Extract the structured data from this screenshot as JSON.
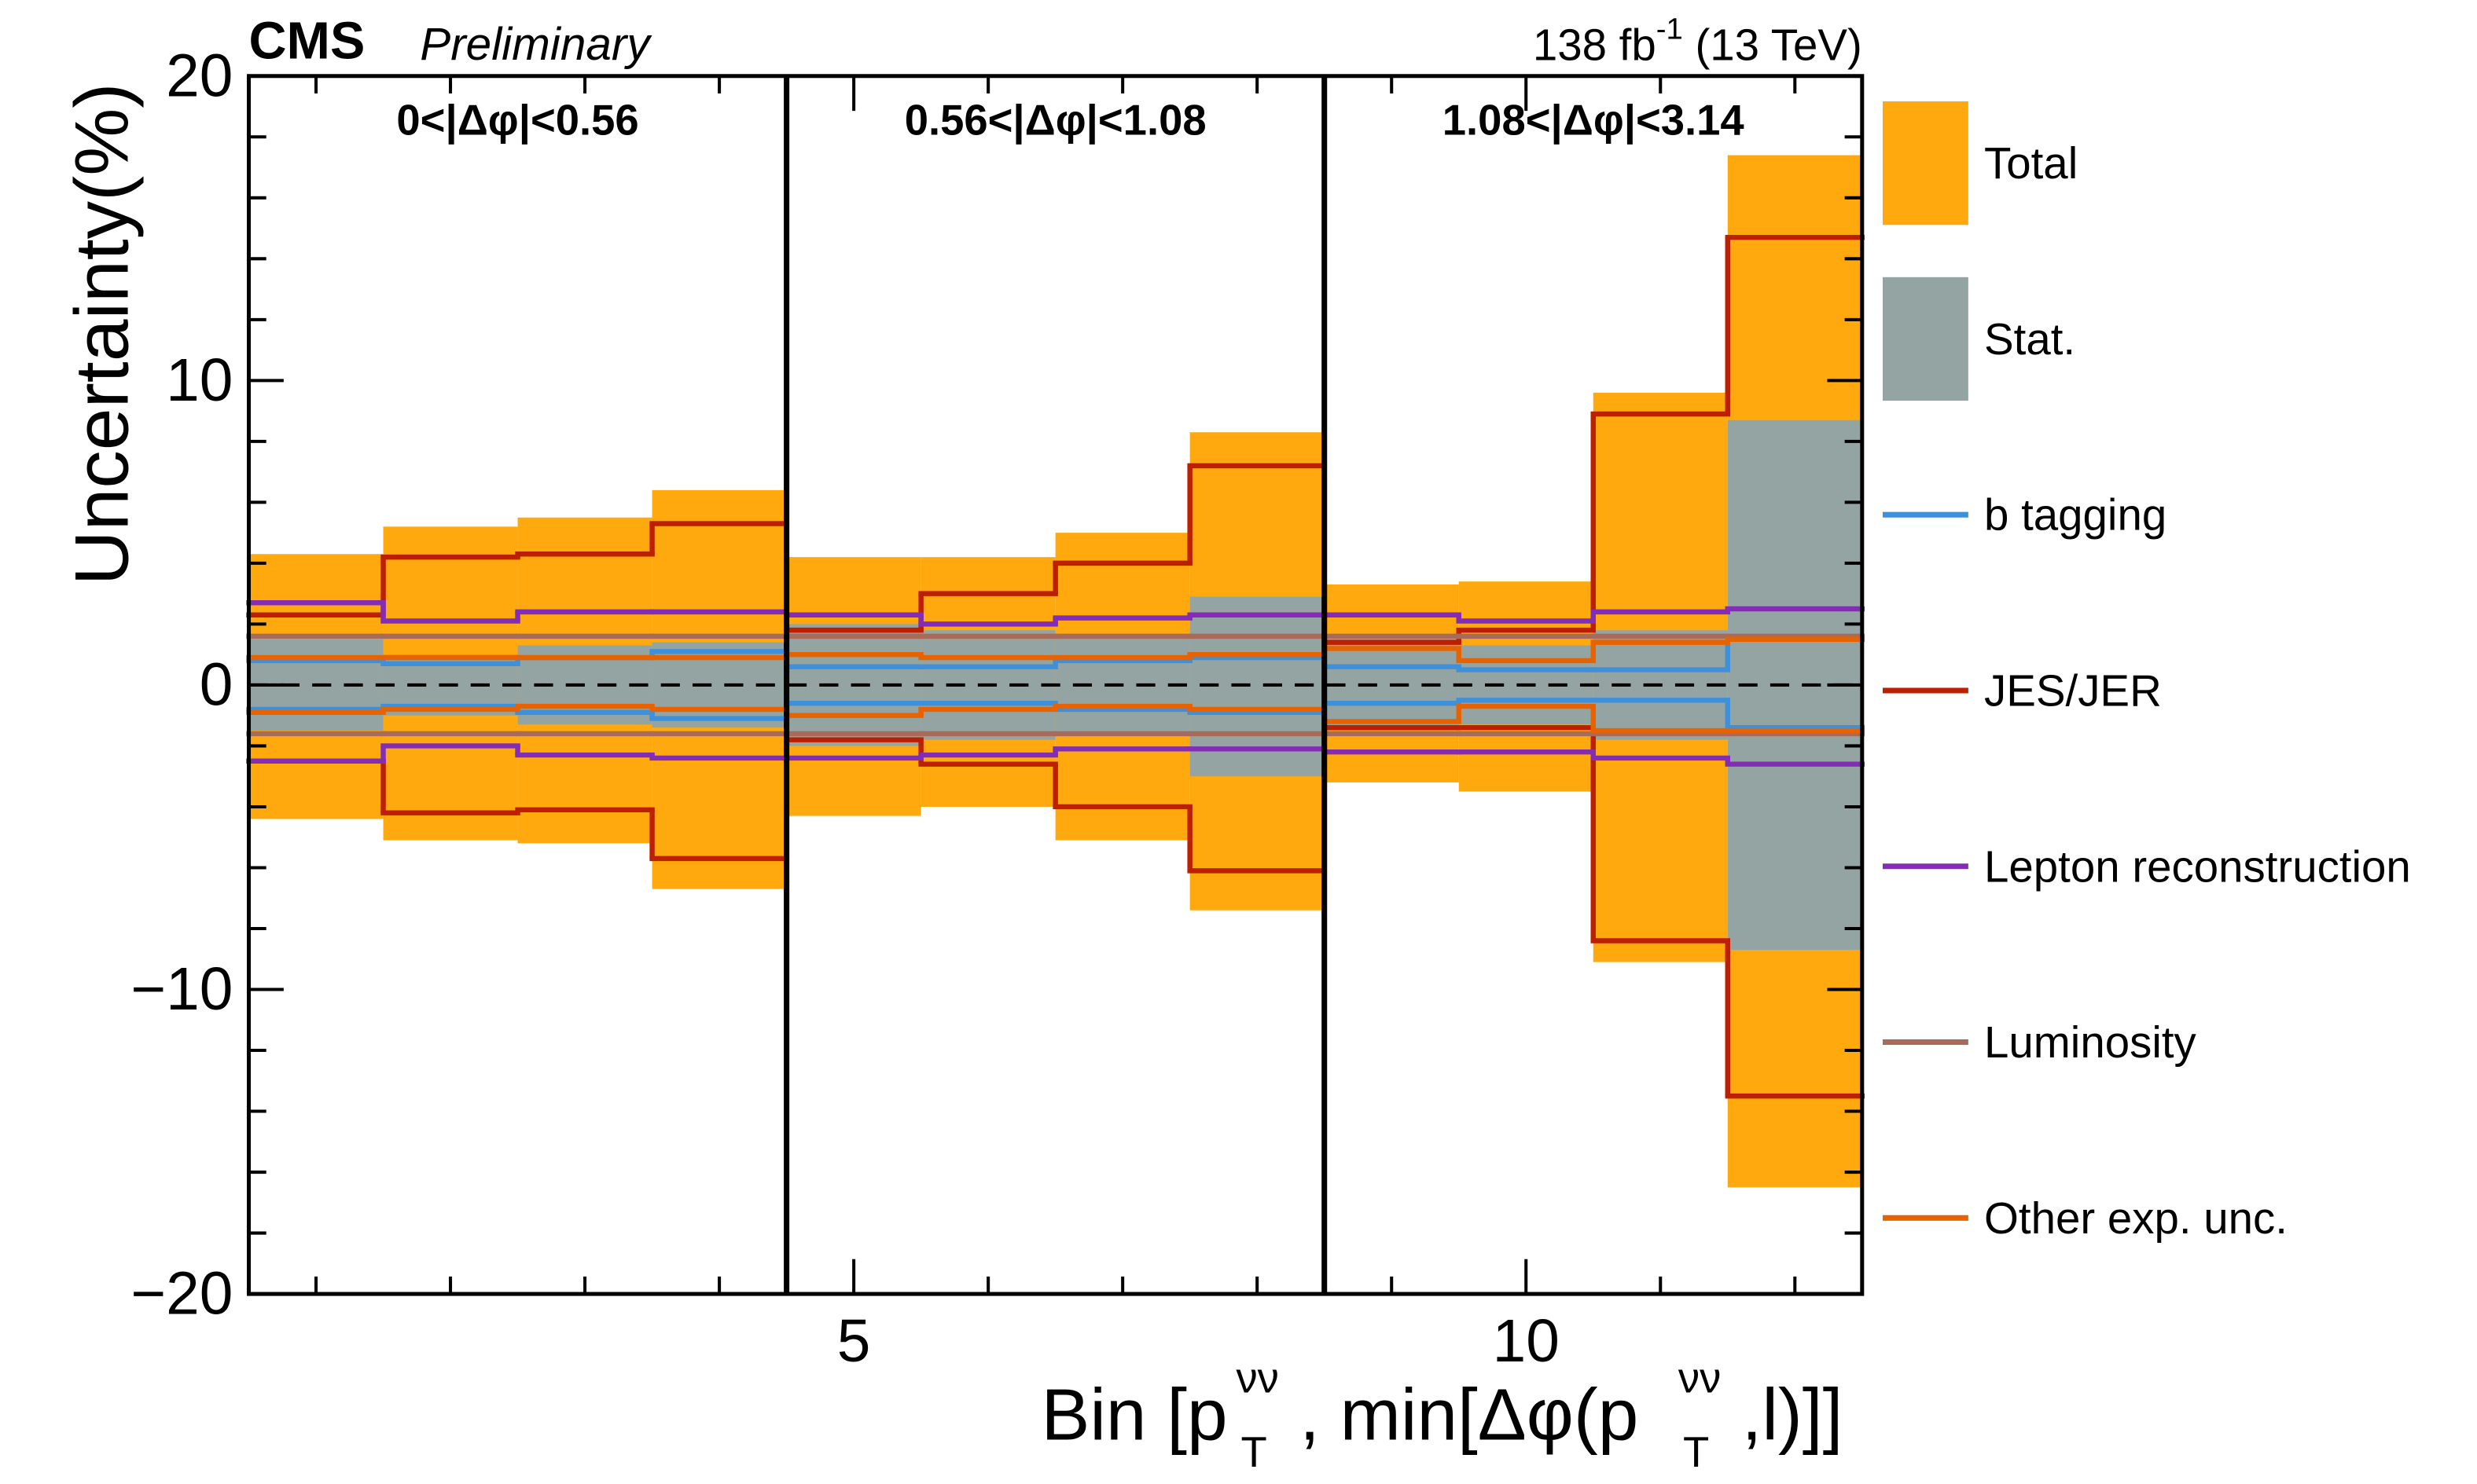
{
  "chart_data": {
    "type": "uncertainty-band",
    "experiment": "CMS",
    "status": "Preliminary",
    "lumi_text": {
      "main": "138 fb",
      "sup": "-1",
      "tail": " (13 TeV)"
    },
    "y_label": "Uncertainty(%)",
    "x_label_parts": [
      "Bin [p",
      "T",
      "νν",
      ", min[Δφ(p",
      "T",
      "νν",
      ",l)]]"
    ],
    "xlim": [
      0.5,
      12.5
    ],
    "xticks": [
      5,
      10
    ],
    "xminorticks": [
      1,
      2,
      3,
      4,
      6,
      7,
      8,
      9,
      11,
      12
    ],
    "ylim": [
      -20,
      20
    ],
    "yticks": [
      {
        "value": -20,
        "label": "−20"
      },
      {
        "value": -10,
        "label": "−10"
      },
      0,
      10,
      20
    ],
    "yminorticks": [
      -18,
      -16,
      -14,
      -12,
      -8,
      -6,
      -4,
      -2,
      2,
      4,
      6,
      8,
      12,
      14,
      16,
      18
    ],
    "dividers": [
      4.5,
      8.5
    ],
    "region_labels": [
      "0<|Δφ|<0.56",
      "0.56<|Δφ|<1.08",
      "1.08<|Δφ|<3.14"
    ],
    "x": [
      1,
      2,
      3,
      4,
      5,
      6,
      7,
      8,
      9,
      10,
      11,
      12
    ],
    "series": [
      {
        "name": "Total",
        "style": "band",
        "color": "#ffa90e",
        "values": [
          4.3,
          5.2,
          5.5,
          6.4,
          4.2,
          4.2,
          5.0,
          8.3,
          3.3,
          3.4,
          9.6,
          17.4
        ],
        "values_low": [
          -4.4,
          -5.1,
          -5.2,
          -6.7,
          -4.3,
          -4.0,
          -5.1,
          -7.4,
          -3.2,
          -3.5,
          -9.1,
          -16.5
        ]
      },
      {
        "name": "Stat.",
        "style": "band",
        "color": "#94a4a2",
        "values": [
          1.5,
          1.0,
          1.3,
          1.4,
          2.0,
          1.8,
          1.6,
          2.9,
          1.5,
          1.3,
          1.8,
          8.7
        ],
        "values_low": [
          -1.5,
          -1.0,
          -1.3,
          -1.4,
          -2.0,
          -1.8,
          -1.6,
          -3.0,
          -1.5,
          -1.3,
          -1.8,
          -8.7
        ]
      },
      {
        "name": "b tagging",
        "style": "line",
        "color": "#3f90da",
        "values": [
          0.8,
          0.7,
          0.9,
          1.1,
          0.6,
          0.6,
          0.8,
          0.9,
          0.6,
          0.5,
          0.5,
          1.5
        ],
        "values_low": [
          -0.8,
          -0.7,
          -0.9,
          -1.1,
          -0.6,
          -0.6,
          -0.8,
          -0.9,
          -0.6,
          -0.5,
          -0.5,
          -1.4
        ]
      },
      {
        "name": "JES/JER",
        "style": "line",
        "color": "#bd1f01",
        "values": [
          2.3,
          4.2,
          4.3,
          5.3,
          1.8,
          3.0,
          4.0,
          7.2,
          1.4,
          1.8,
          8.9,
          14.7
        ],
        "values_low": [
          -2.5,
          -4.2,
          -4.1,
          -5.7,
          -1.8,
          -2.6,
          -4.0,
          -6.1,
          -1.4,
          -1.4,
          -8.4,
          -13.5
        ]
      },
      {
        "name": "Lepton reconstruction",
        "style": "line",
        "color": "#832db6",
        "values": [
          2.7,
          2.1,
          2.4,
          2.4,
          2.3,
          2.0,
          2.2,
          2.3,
          2.3,
          2.1,
          2.4,
          2.5
        ],
        "values_low": [
          -2.5,
          -2.0,
          -2.3,
          -2.4,
          -2.4,
          -2.3,
          -2.1,
          -2.1,
          -2.2,
          -2.2,
          -2.4,
          -2.6
        ]
      },
      {
        "name": "Luminosity",
        "style": "line",
        "color": "#a96b59",
        "values": [
          1.6,
          1.6,
          1.6,
          1.6,
          1.6,
          1.6,
          1.6,
          1.6,
          1.6,
          1.6,
          1.6,
          1.6
        ],
        "values_low": [
          -1.6,
          -1.6,
          -1.6,
          -1.6,
          -1.6,
          -1.6,
          -1.6,
          -1.6,
          -1.6,
          -1.6,
          -1.6,
          -1.6
        ]
      },
      {
        "name": "Other exp. unc.",
        "style": "line",
        "color": "#e76300",
        "values": [
          0.9,
          0.9,
          0.9,
          0.9,
          1.0,
          0.9,
          0.9,
          1.0,
          1.2,
          0.8,
          1.4,
          1.5
        ],
        "values_low": [
          -0.9,
          -0.8,
          -0.7,
          -0.8,
          -1.0,
          -0.8,
          -0.7,
          -0.8,
          -1.2,
          -0.7,
          -1.5,
          -1.5
        ]
      }
    ]
  }
}
